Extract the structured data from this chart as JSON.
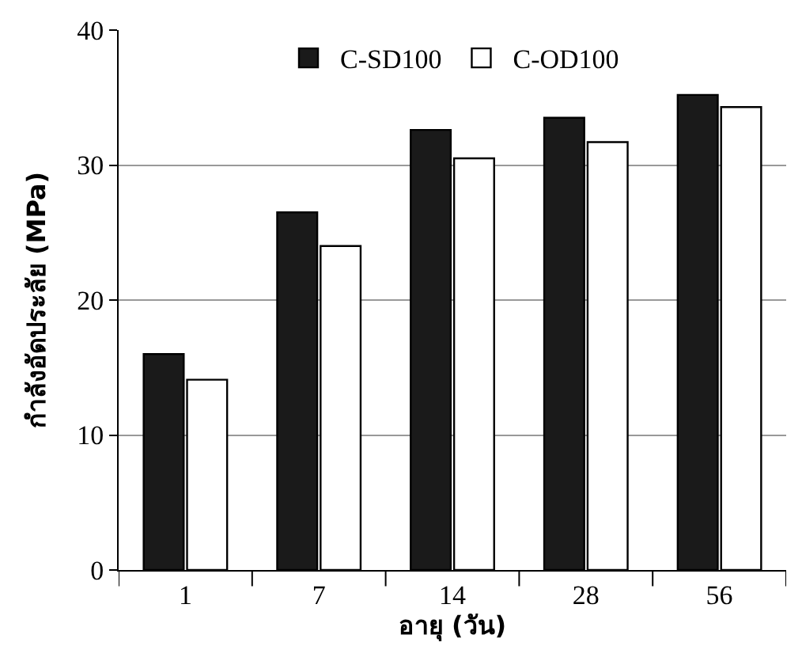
{
  "chart_data": {
    "type": "bar",
    "xlabel": "อายุ (วัน)",
    "ylabel": "กำลังอัดประลัย (MPa)",
    "categories": [
      "1",
      "7",
      "14",
      "28",
      "56"
    ],
    "series": [
      {
        "name": "C-SD100",
        "color": "#1a1a1a",
        "values": [
          16.0,
          26.5,
          32.6,
          33.5,
          35.2
        ]
      },
      {
        "name": "C-OD100",
        "color": "#ffffff",
        "values": [
          14.1,
          24.0,
          30.5,
          31.7,
          34.3
        ]
      }
    ],
    "ylim": [
      0,
      40
    ],
    "yticks": [
      0,
      10,
      20,
      30,
      40
    ],
    "grid": "y",
    "legend": "top"
  }
}
